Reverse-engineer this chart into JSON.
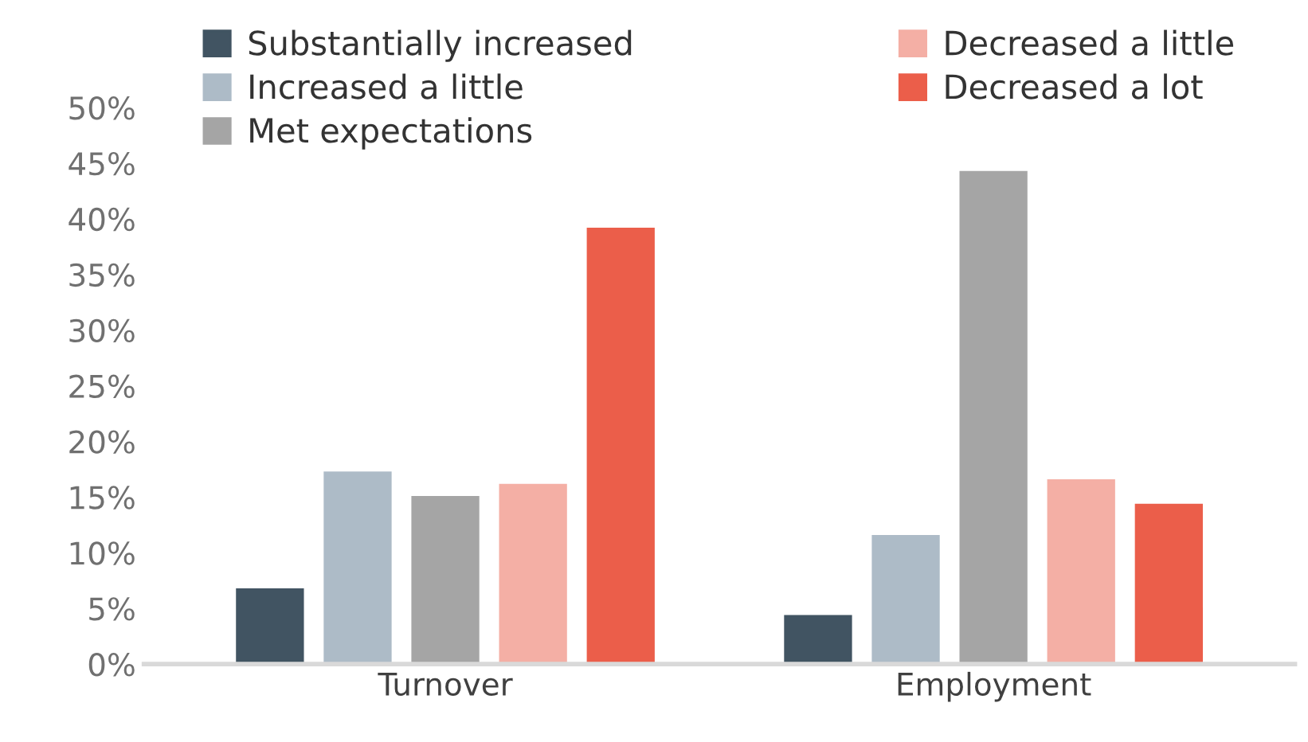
{
  "chart_data": {
    "type": "bar",
    "categories": [
      "Turnover",
      "Employment"
    ],
    "series": [
      {
        "name": "Substantially increased",
        "color": "#415462",
        "values": [
          6.9,
          4.5
        ]
      },
      {
        "name": "Increased a little",
        "color": "#adbbc7",
        "values": [
          17.4,
          11.7
        ]
      },
      {
        "name": "Met expectations",
        "color": "#a5a5a5",
        "values": [
          15.2,
          44.4
        ]
      },
      {
        "name": "Decreased a little",
        "color": "#f4afa5",
        "values": [
          16.3,
          16.7
        ]
      },
      {
        "name": "Decreased a lot",
        "color": "#eb5e4a",
        "values": [
          39.3,
          14.5
        ]
      }
    ],
    "ylim": [
      0,
      50
    ],
    "yticks": [
      {
        "value": 0,
        "label": "0%"
      },
      {
        "value": 5,
        "label": "5%"
      },
      {
        "value": 10,
        "label": "10%"
      },
      {
        "value": 15,
        "label": "15%"
      },
      {
        "value": 20,
        "label": "20%"
      },
      {
        "value": 25,
        "label": "25%"
      },
      {
        "value": 30,
        "label": "30%"
      },
      {
        "value": 35,
        "label": "35%"
      },
      {
        "value": 40,
        "label": "40%"
      },
      {
        "value": 45,
        "label": "45%"
      },
      {
        "value": 50,
        "label": "50%"
      }
    ],
    "grid": false,
    "legend": "top"
  }
}
